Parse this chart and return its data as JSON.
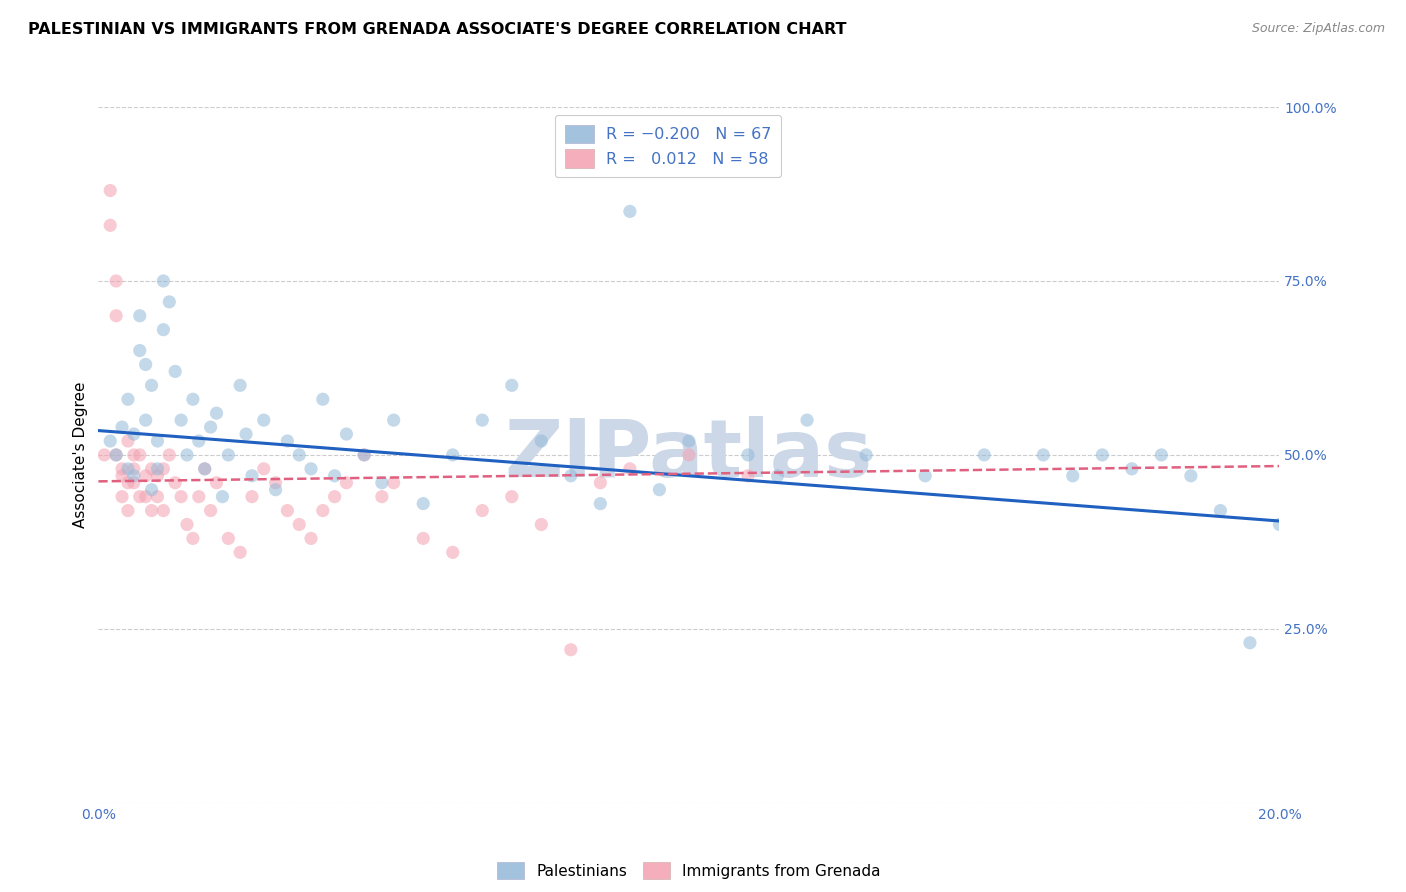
{
  "title": "PALESTINIAN VS IMMIGRANTS FROM GRENADA ASSOCIATE'S DEGREE CORRELATION CHART",
  "source": "Source: ZipAtlas.com",
  "ylabel": "Associate's Degree",
  "xlim": [
    0.0,
    0.2
  ],
  "ylim": [
    0.0,
    1.0
  ],
  "legend_label1": "Palestinians",
  "legend_label2": "Immigrants from Grenada",
  "blue_color": "#92b8d8",
  "pink_color": "#f4a0b0",
  "blue_line_color": "#2060c0",
  "pink_line_color": "#e06080",
  "watermark": "ZIPatlas",
  "blue_x": [
    0.002,
    0.003,
    0.004,
    0.005,
    0.005,
    0.006,
    0.006,
    0.007,
    0.007,
    0.008,
    0.008,
    0.009,
    0.009,
    0.01,
    0.01,
    0.011,
    0.011,
    0.012,
    0.013,
    0.014,
    0.015,
    0.016,
    0.017,
    0.018,
    0.019,
    0.02,
    0.021,
    0.022,
    0.024,
    0.025,
    0.026,
    0.028,
    0.03,
    0.032,
    0.034,
    0.036,
    0.038,
    0.04,
    0.042,
    0.045,
    0.048,
    0.05,
    0.055,
    0.06,
    0.065,
    0.07,
    0.075,
    0.08,
    0.085,
    0.09,
    0.095,
    0.1,
    0.11,
    0.115,
    0.12,
    0.13,
    0.14,
    0.15,
    0.16,
    0.165,
    0.17,
    0.175,
    0.18,
    0.185,
    0.19,
    0.195,
    0.2
  ],
  "blue_y": [
    0.52,
    0.5,
    0.54,
    0.58,
    0.48,
    0.53,
    0.47,
    0.65,
    0.7,
    0.63,
    0.55,
    0.6,
    0.45,
    0.52,
    0.48,
    0.75,
    0.68,
    0.72,
    0.62,
    0.55,
    0.5,
    0.58,
    0.52,
    0.48,
    0.54,
    0.56,
    0.44,
    0.5,
    0.6,
    0.53,
    0.47,
    0.55,
    0.45,
    0.52,
    0.5,
    0.48,
    0.58,
    0.47,
    0.53,
    0.5,
    0.46,
    0.55,
    0.43,
    0.5,
    0.55,
    0.6,
    0.52,
    0.47,
    0.43,
    0.85,
    0.45,
    0.52,
    0.5,
    0.47,
    0.55,
    0.5,
    0.47,
    0.5,
    0.5,
    0.47,
    0.5,
    0.48,
    0.5,
    0.47,
    0.42,
    0.23,
    0.4
  ],
  "pink_x": [
    0.001,
    0.002,
    0.002,
    0.003,
    0.003,
    0.003,
    0.004,
    0.004,
    0.004,
    0.005,
    0.005,
    0.005,
    0.006,
    0.006,
    0.006,
    0.007,
    0.007,
    0.008,
    0.008,
    0.009,
    0.009,
    0.01,
    0.01,
    0.011,
    0.011,
    0.012,
    0.013,
    0.014,
    0.015,
    0.016,
    0.017,
    0.018,
    0.019,
    0.02,
    0.022,
    0.024,
    0.026,
    0.028,
    0.03,
    0.032,
    0.034,
    0.036,
    0.038,
    0.04,
    0.042,
    0.045,
    0.048,
    0.05,
    0.055,
    0.06,
    0.065,
    0.07,
    0.075,
    0.08,
    0.085,
    0.09,
    0.1,
    0.11
  ],
  "pink_y": [
    0.5,
    0.88,
    0.83,
    0.75,
    0.7,
    0.5,
    0.47,
    0.44,
    0.48,
    0.52,
    0.46,
    0.42,
    0.5,
    0.46,
    0.48,
    0.44,
    0.5,
    0.47,
    0.44,
    0.42,
    0.48,
    0.47,
    0.44,
    0.42,
    0.48,
    0.5,
    0.46,
    0.44,
    0.4,
    0.38,
    0.44,
    0.48,
    0.42,
    0.46,
    0.38,
    0.36,
    0.44,
    0.48,
    0.46,
    0.42,
    0.4,
    0.38,
    0.42,
    0.44,
    0.46,
    0.5,
    0.44,
    0.46,
    0.38,
    0.36,
    0.42,
    0.44,
    0.4,
    0.22,
    0.46,
    0.48,
    0.5,
    0.47
  ],
  "blue_trend_x": [
    0.0,
    0.2
  ],
  "blue_trend_y": [
    0.535,
    0.405
  ],
  "pink_trend_x": [
    0.0,
    0.2
  ],
  "pink_trend_y": [
    0.462,
    0.484
  ],
  "background_color": "#ffffff",
  "grid_color": "#cccccc",
  "title_fontsize": 11.5,
  "axis_label_fontsize": 11,
  "tick_fontsize": 10,
  "marker_size": 90,
  "marker_alpha": 0.55,
  "watermark_color": "#ccd8e8",
  "watermark_fontsize": 58
}
